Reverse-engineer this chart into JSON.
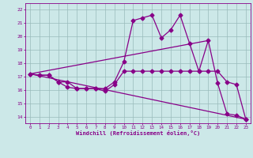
{
  "xlabel": "Windchill (Refroidissement éolien,°C)",
  "background_color": "#cce8e8",
  "line_color": "#880088",
  "grid_color": "#99bbbb",
  "xlim": [
    -0.5,
    23.5
  ],
  "ylim": [
    13.5,
    22.5
  ],
  "yticks": [
    14,
    15,
    16,
    17,
    18,
    19,
    20,
    21,
    22
  ],
  "xticks": [
    0,
    1,
    2,
    3,
    4,
    5,
    6,
    7,
    8,
    9,
    10,
    11,
    12,
    13,
    14,
    15,
    16,
    17,
    18,
    19,
    20,
    21,
    22,
    23
  ],
  "series1_x": [
    0,
    1,
    2,
    3,
    4,
    5,
    6,
    7,
    8,
    9,
    10,
    11,
    12,
    13,
    14,
    15,
    16,
    17,
    18,
    19,
    20,
    21,
    22,
    23
  ],
  "series1_y": [
    17.2,
    17.1,
    17.1,
    16.6,
    16.2,
    16.1,
    16.1,
    16.1,
    15.9,
    16.4,
    17.4,
    17.4,
    17.4,
    17.4,
    17.4,
    17.4,
    17.4,
    17.4,
    17.4,
    17.4,
    17.4,
    16.6,
    16.4,
    13.8
  ],
  "series2_x": [
    0,
    1,
    2,
    3,
    4,
    5,
    6,
    7,
    8,
    9,
    10,
    11,
    12,
    13,
    14,
    15,
    16,
    17,
    18,
    19,
    20,
    21,
    22,
    23
  ],
  "series2_y": [
    17.2,
    17.1,
    17.1,
    16.6,
    16.6,
    16.1,
    16.1,
    16.1,
    16.1,
    16.6,
    18.1,
    21.2,
    21.4,
    21.6,
    19.9,
    20.5,
    21.6,
    19.5,
    17.4,
    19.7,
    16.5,
    14.2,
    14.1,
    13.8
  ],
  "series3_x": [
    0,
    23
  ],
  "series3_y": [
    17.2,
    13.8
  ],
  "series4_x": [
    0,
    19
  ],
  "series4_y": [
    17.2,
    19.7
  ],
  "markersize": 2.5,
  "linewidth": 0.9
}
